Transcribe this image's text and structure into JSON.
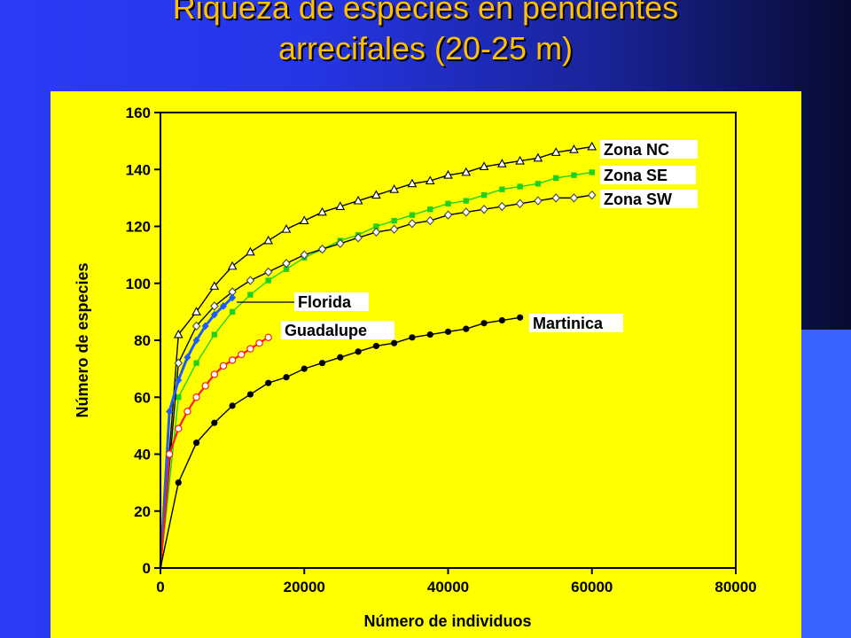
{
  "slide": {
    "title_line1": "Riqueza de especies en pendientes",
    "title_line2": "arrecifales (20-25 m)"
  },
  "colors": {
    "background": "#2536e8",
    "panel": "#ffff00",
    "title": "#ffc000"
  },
  "chart_data": {
    "type": "line",
    "title": "",
    "xlabel": "Número de individuos",
    "ylabel": "Número de especies",
    "xlim": [
      0,
      80000
    ],
    "ylim": [
      0,
      160
    ],
    "xticks": [
      0,
      20000,
      40000,
      60000,
      80000
    ],
    "yticks": [
      0,
      20,
      40,
      60,
      80,
      100,
      120,
      140,
      160
    ],
    "grid": false,
    "series": [
      {
        "name": "Zona NC",
        "color": "#000000",
        "marker": "triangle-open",
        "x": [
          0,
          2500,
          5000,
          7500,
          10000,
          12500,
          15000,
          17500,
          20000,
          22500,
          25000,
          27500,
          30000,
          32500,
          35000,
          37500,
          40000,
          42500,
          45000,
          47500,
          50000,
          52500,
          55000,
          57500,
          60000
        ],
        "y": [
          0,
          82,
          90,
          99,
          106,
          111,
          115,
          119,
          122,
          125,
          127,
          129,
          131,
          133,
          135,
          136,
          138,
          139,
          141,
          142,
          143,
          144,
          146,
          147,
          148
        ]
      },
      {
        "name": "Zona SE",
        "color": "#1fd21f",
        "marker": "square-filled",
        "x": [
          0,
          2500,
          5000,
          7500,
          10000,
          12500,
          15000,
          17500,
          20000,
          22500,
          25000,
          27500,
          30000,
          32500,
          35000,
          37500,
          40000,
          42500,
          45000,
          47500,
          50000,
          52500,
          55000,
          57500,
          60000
        ],
        "y": [
          0,
          60,
          72,
          82,
          90,
          96,
          101,
          105,
          109,
          112,
          115,
          117,
          120,
          122,
          124,
          126,
          128,
          129,
          131,
          133,
          134,
          135,
          137,
          138,
          139
        ]
      },
      {
        "name": "Zona SW",
        "color": "#000000",
        "marker": "diamond-open",
        "x": [
          0,
          2500,
          5000,
          7500,
          10000,
          12500,
          15000,
          17500,
          20000,
          22500,
          25000,
          27500,
          30000,
          32500,
          35000,
          37500,
          40000,
          42500,
          45000,
          47500,
          50000,
          52500,
          55000,
          57500,
          60000
        ],
        "y": [
          0,
          72,
          85,
          92,
          97,
          101,
          104,
          107,
          110,
          112,
          114,
          116,
          118,
          119,
          121,
          122,
          124,
          125,
          126,
          127,
          128,
          129,
          130,
          130,
          131
        ]
      },
      {
        "name": "Florida",
        "color": "#1e5bff",
        "marker": "diamond-filled",
        "x": [
          0,
          1250,
          2500,
          3750,
          5000,
          6250,
          7500,
          8750,
          10000
        ],
        "y": [
          0,
          55,
          66,
          74,
          80,
          85,
          89,
          92,
          95
        ]
      },
      {
        "name": "Guadalupe",
        "color": "#ff1a1a",
        "marker": "circle-open",
        "x": [
          0,
          1250,
          2500,
          3750,
          5000,
          6250,
          7500,
          8750,
          10000,
          11250,
          12500,
          13750,
          15000
        ],
        "y": [
          0,
          40,
          49,
          55,
          60,
          64,
          68,
          71,
          73,
          75,
          77,
          79,
          81
        ]
      },
      {
        "name": "Martinica",
        "color": "#000000",
        "marker": "circle-filled",
        "x": [
          0,
          2500,
          5000,
          7500,
          10000,
          12500,
          15000,
          17500,
          20000,
          22500,
          25000,
          27500,
          30000,
          32500,
          35000,
          37500,
          40000,
          42500,
          45000,
          47500,
          50000
        ],
        "y": [
          0,
          30,
          44,
          51,
          57,
          61,
          65,
          67,
          70,
          72,
          74,
          76,
          78,
          79,
          81,
          82,
          83,
          84,
          86,
          87,
          88
        ]
      }
    ]
  }
}
